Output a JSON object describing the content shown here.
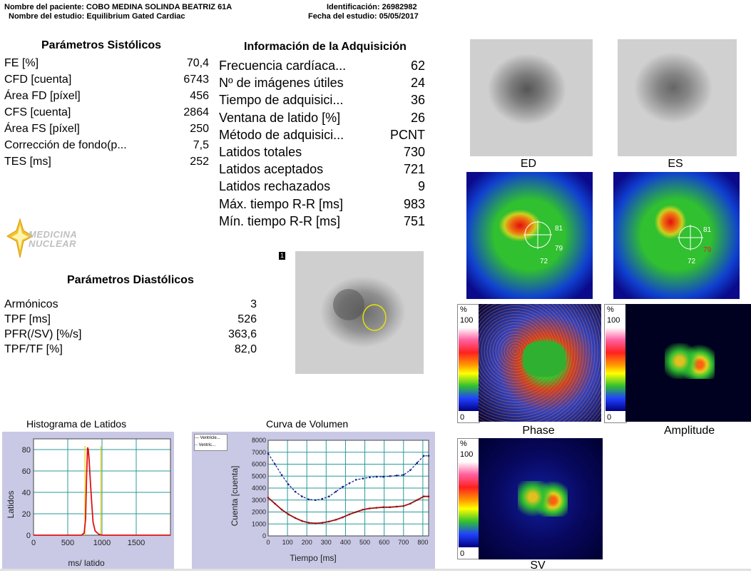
{
  "header": {
    "patient_label": "Nombre del paciente:",
    "patient_name": "COBO MEDINA SOLINDA BEATRIZ 61A",
    "study_label": "Nombre del estudio:",
    "study_name": "Equilibrium Gated Cardiac",
    "id_label": "Identificación:",
    "id_value": "26982982",
    "date_label": "Fecha del estudio:",
    "date_value": "05/05/2017"
  },
  "systolic": {
    "title": "Parámetros Sistólicos",
    "rows": [
      {
        "label": "FE [%]",
        "value": "70,4"
      },
      {
        "label": "CFD [cuenta]",
        "value": "6743"
      },
      {
        "label": "Área FD [píxel]",
        "value": "456"
      },
      {
        "label": "CFS [cuenta]",
        "value": "2864"
      },
      {
        "label": "Área FS [píxel]",
        "value": "250"
      },
      {
        "label": "Corrección de fondo(p...",
        "value": "7,5"
      },
      {
        "label": "TES [ms]",
        "value": "252"
      }
    ]
  },
  "acquisition": {
    "title": "Información de la Adquisición",
    "rows": [
      {
        "label": "Frecuencia cardíaca...",
        "value": "62"
      },
      {
        "label": "Nº de imágenes útiles",
        "value": "24"
      },
      {
        "label": "Tiempo de adquisici...",
        "value": "36"
      },
      {
        "label": "Ventana de latido [%]",
        "value": "26"
      },
      {
        "label": "Método de adquisici...",
        "value": "PCNT"
      },
      {
        "label": "Latidos totales",
        "value": "730"
      },
      {
        "label": "Latidos aceptados",
        "value": "721"
      },
      {
        "label": "Latidos rechazados",
        "value": "9"
      },
      {
        "label": "Máx. tiempo R-R [ms]",
        "value": "983"
      },
      {
        "label": "Mín. tiempo R-R [ms]",
        "value": "751"
      }
    ]
  },
  "logo": {
    "line1": "MEDICINA",
    "line2": "NUCLEAR"
  },
  "diastolic": {
    "title": "Parámetros Diastólicos",
    "rows": [
      {
        "label": "Armónicos",
        "value": "3"
      },
      {
        "label": "TPF [ms]",
        "value": "526"
      },
      {
        "label": "PFR(/SV) [%/s]",
        "value": "363,6"
      },
      {
        "label": "TPF/TF [%]",
        "value": "82,0"
      }
    ]
  },
  "roi_frame_number": "1",
  "images": {
    "ed_label": "ED",
    "es_label": "ES",
    "phase_label": "Phase",
    "amplitude_label": "Amplitude",
    "sv_label": "SV",
    "ed_overlay_numbers": [
      "81",
      "79",
      "72"
    ],
    "es_overlay_numbers": [
      "81",
      "79",
      "72"
    ],
    "scale_pct": "%",
    "scale_max": "100",
    "scale_min": "0"
  },
  "histogram": {
    "title": "Histograma de Latidos",
    "chart_data": {
      "type": "line",
      "title": "Histograma de Latidos",
      "xlabel": "ms/ latido",
      "ylabel": "Latidos",
      "xlim": [
        0,
        2000
      ],
      "ylim": [
        0,
        90
      ],
      "xticks": [
        0,
        500,
        1000,
        1500
      ],
      "yticks": [
        0,
        20,
        40,
        60,
        80
      ],
      "grid": true,
      "x": [
        0,
        700,
        740,
        760,
        775,
        790,
        800,
        810,
        830,
        850,
        870,
        900,
        950,
        1000,
        2000
      ],
      "values": [
        0,
        0,
        2,
        15,
        55,
        82,
        80,
        72,
        50,
        30,
        12,
        4,
        1,
        0,
        0
      ],
      "limits": [
        751,
        983
      ]
    }
  },
  "volume": {
    "title": "Curva de Volumen",
    "legend": [
      "Ventricle...",
      "Ventric..."
    ],
    "chart_data": {
      "type": "line",
      "title": "Curva de Volumen",
      "xlabel": "Tiempo [ms]",
      "ylabel": "Cuenta [cuenta]",
      "xlim": [
        0,
        830
      ],
      "ylim": [
        0,
        8000
      ],
      "xticks": [
        0,
        100,
        200,
        300,
        400,
        500,
        600,
        700,
        800
      ],
      "yticks": [
        0,
        1000,
        2000,
        3000,
        4000,
        5000,
        6000,
        7000,
        8000
      ],
      "grid": true,
      "series": [
        {
          "name": "Ventricle...",
          "x": [
            0,
            35,
            70,
            105,
            140,
            175,
            210,
            245,
            280,
            315,
            350,
            385,
            420,
            455,
            490,
            525,
            560,
            595,
            630,
            665,
            700,
            735,
            770,
            805,
            830
          ],
          "values": [
            3200,
            2700,
            2200,
            1800,
            1500,
            1250,
            1100,
            1050,
            1100,
            1200,
            1350,
            1550,
            1800,
            2000,
            2200,
            2300,
            2350,
            2400,
            2400,
            2450,
            2500,
            2700,
            3000,
            3300,
            3300
          ]
        },
        {
          "name": "Ventric...",
          "x": [
            0,
            35,
            70,
            105,
            140,
            175,
            210,
            245,
            280,
            315,
            350,
            385,
            420,
            455,
            490,
            525,
            560,
            595,
            630,
            665,
            700,
            735,
            770,
            805,
            830
          ],
          "values": [
            6900,
            6000,
            5100,
            4300,
            3700,
            3300,
            3050,
            3000,
            3100,
            3300,
            3700,
            4100,
            4400,
            4700,
            4800,
            4900,
            4950,
            4950,
            5000,
            5050,
            5100,
            5500,
            6100,
            6700,
            6700
          ]
        }
      ],
      "colors": [
        "#a01010",
        "#10208a"
      ]
    }
  }
}
